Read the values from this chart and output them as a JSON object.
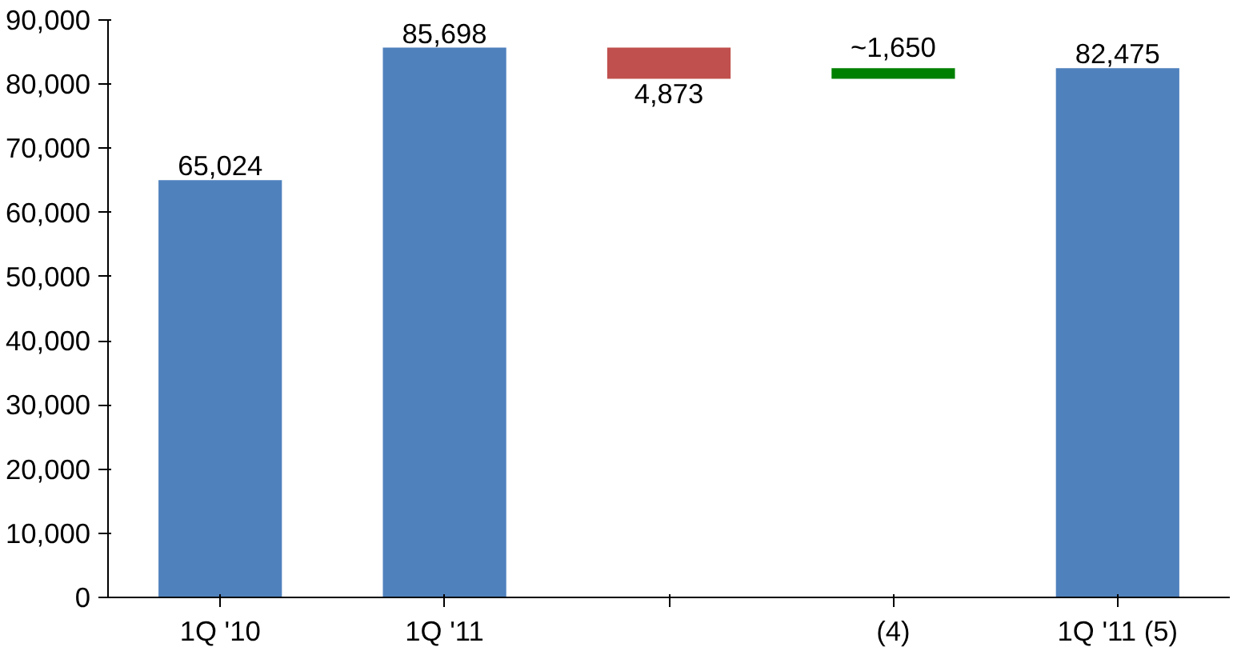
{
  "chart_data": {
    "type": "bar",
    "categories": [
      "1Q '10",
      "1Q '11",
      null,
      "(4)",
      "1Q '11 (5)"
    ],
    "values": [
      65024,
      85698,
      -4873,
      1650,
      82475
    ],
    "base": [
      0,
      0,
      85698,
      80825,
      0
    ],
    "colors": [
      "#4f81bd",
      "#4f81bd",
      "#c0504d",
      "#008000",
      "#4f81bd"
    ],
    "value_labels": [
      "65,024",
      "85,698",
      "4,873",
      "~1,650",
      "82,475"
    ],
    "ylim": [
      0,
      90000
    ],
    "yticks": [
      0,
      {
        "value": 10000,
        "label": "10,000"
      },
      {
        "value": 20000,
        "label": "20,000"
      },
      {
        "value": 30000,
        "label": "30,000"
      },
      {
        "value": 40000,
        "label": "40,000"
      },
      {
        "value": 50000,
        "label": "50,000"
      },
      {
        "value": 60000,
        "label": "60,000"
      },
      {
        "value": 70000,
        "label": "70,000"
      },
      {
        "value": 80000,
        "label": "80,000"
      },
      {
        "value": 90000,
        "label": "90,000"
      }
    ],
    "grid": false
  }
}
